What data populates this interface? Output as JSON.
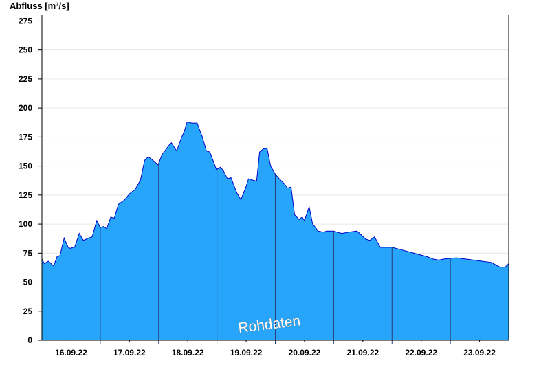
{
  "chart_data": {
    "type": "area",
    "ylabel": "Abfluss [m³/s]",
    "xlabel": "",
    "title": "",
    "watermark": "Rohdaten",
    "ylim": [
      0,
      280
    ],
    "yticks": [
      0,
      25,
      50,
      75,
      100,
      125,
      150,
      175,
      200,
      225,
      250,
      275
    ],
    "xlim_days": [
      0,
      8
    ],
    "day_labels": [
      "16.09.22",
      "17.09.22",
      "18.09.22",
      "19.09.22",
      "20.09.22",
      "21.09.22",
      "22.09.22",
      "23.09.22"
    ],
    "grid": true,
    "fill_color": "#27a5fb",
    "line_color": "#0000c8",
    "series": [
      {
        "x_days": [
          0.0,
          0.04,
          0.11,
          0.2,
          0.26,
          0.31,
          0.38,
          0.45,
          0.49,
          0.53,
          0.56,
          0.64,
          0.71,
          0.76,
          0.8,
          0.86,
          0.94,
          1.0,
          1.06,
          1.11,
          1.18,
          1.24,
          1.31,
          1.42,
          1.5,
          1.6,
          1.69,
          1.76,
          1.82,
          1.88,
          1.99,
          2.06,
          2.12,
          2.18,
          2.22,
          2.27,
          2.31,
          2.38,
          2.44,
          2.49,
          2.57,
          2.66,
          2.75,
          2.82,
          2.88,
          2.99,
          3.06,
          3.11,
          3.18,
          3.24,
          3.34,
          3.41,
          3.49,
          3.54,
          3.6,
          3.68,
          3.73,
          3.8,
          3.86,
          3.92,
          4.0,
          4.07,
          4.15,
          4.21,
          4.27,
          4.33,
          4.41,
          4.46,
          4.5,
          4.58,
          4.64,
          4.69,
          4.73,
          4.83,
          4.88,
          4.94,
          5.0,
          5.06,
          5.14,
          5.25,
          5.4,
          5.55,
          5.62,
          5.7,
          5.8,
          5.9,
          6.0,
          6.15,
          6.3,
          6.45,
          6.6,
          6.7,
          6.8,
          6.9,
          7.1,
          7.25,
          7.4,
          7.55,
          7.7,
          7.85,
          7.94,
          8.0
        ],
        "values": [
          70,
          66,
          68,
          64,
          72,
          73,
          88,
          80,
          79,
          80,
          80,
          92,
          86,
          87,
          88,
          89,
          103,
          97,
          98,
          96,
          106,
          105,
          117,
          121,
          126,
          130,
          138,
          155,
          158,
          156,
          151,
          160,
          164,
          168,
          170,
          166,
          163,
          173,
          180,
          188,
          187,
          187,
          175,
          163,
          162,
          147,
          149,
          146,
          139,
          140,
          127,
          121,
          131,
          139,
          138,
          137,
          162,
          165,
          165,
          150,
          143,
          139,
          135,
          131,
          132,
          108,
          104,
          106,
          103,
          115,
          100,
          97,
          94,
          93,
          94,
          94,
          94,
          93,
          92,
          93,
          94,
          87,
          86,
          89,
          80,
          80,
          80,
          78,
          76,
          74,
          72,
          70,
          69,
          70,
          71,
          70,
          69,
          68,
          67,
          63,
          63,
          66
        ]
      }
    ]
  }
}
